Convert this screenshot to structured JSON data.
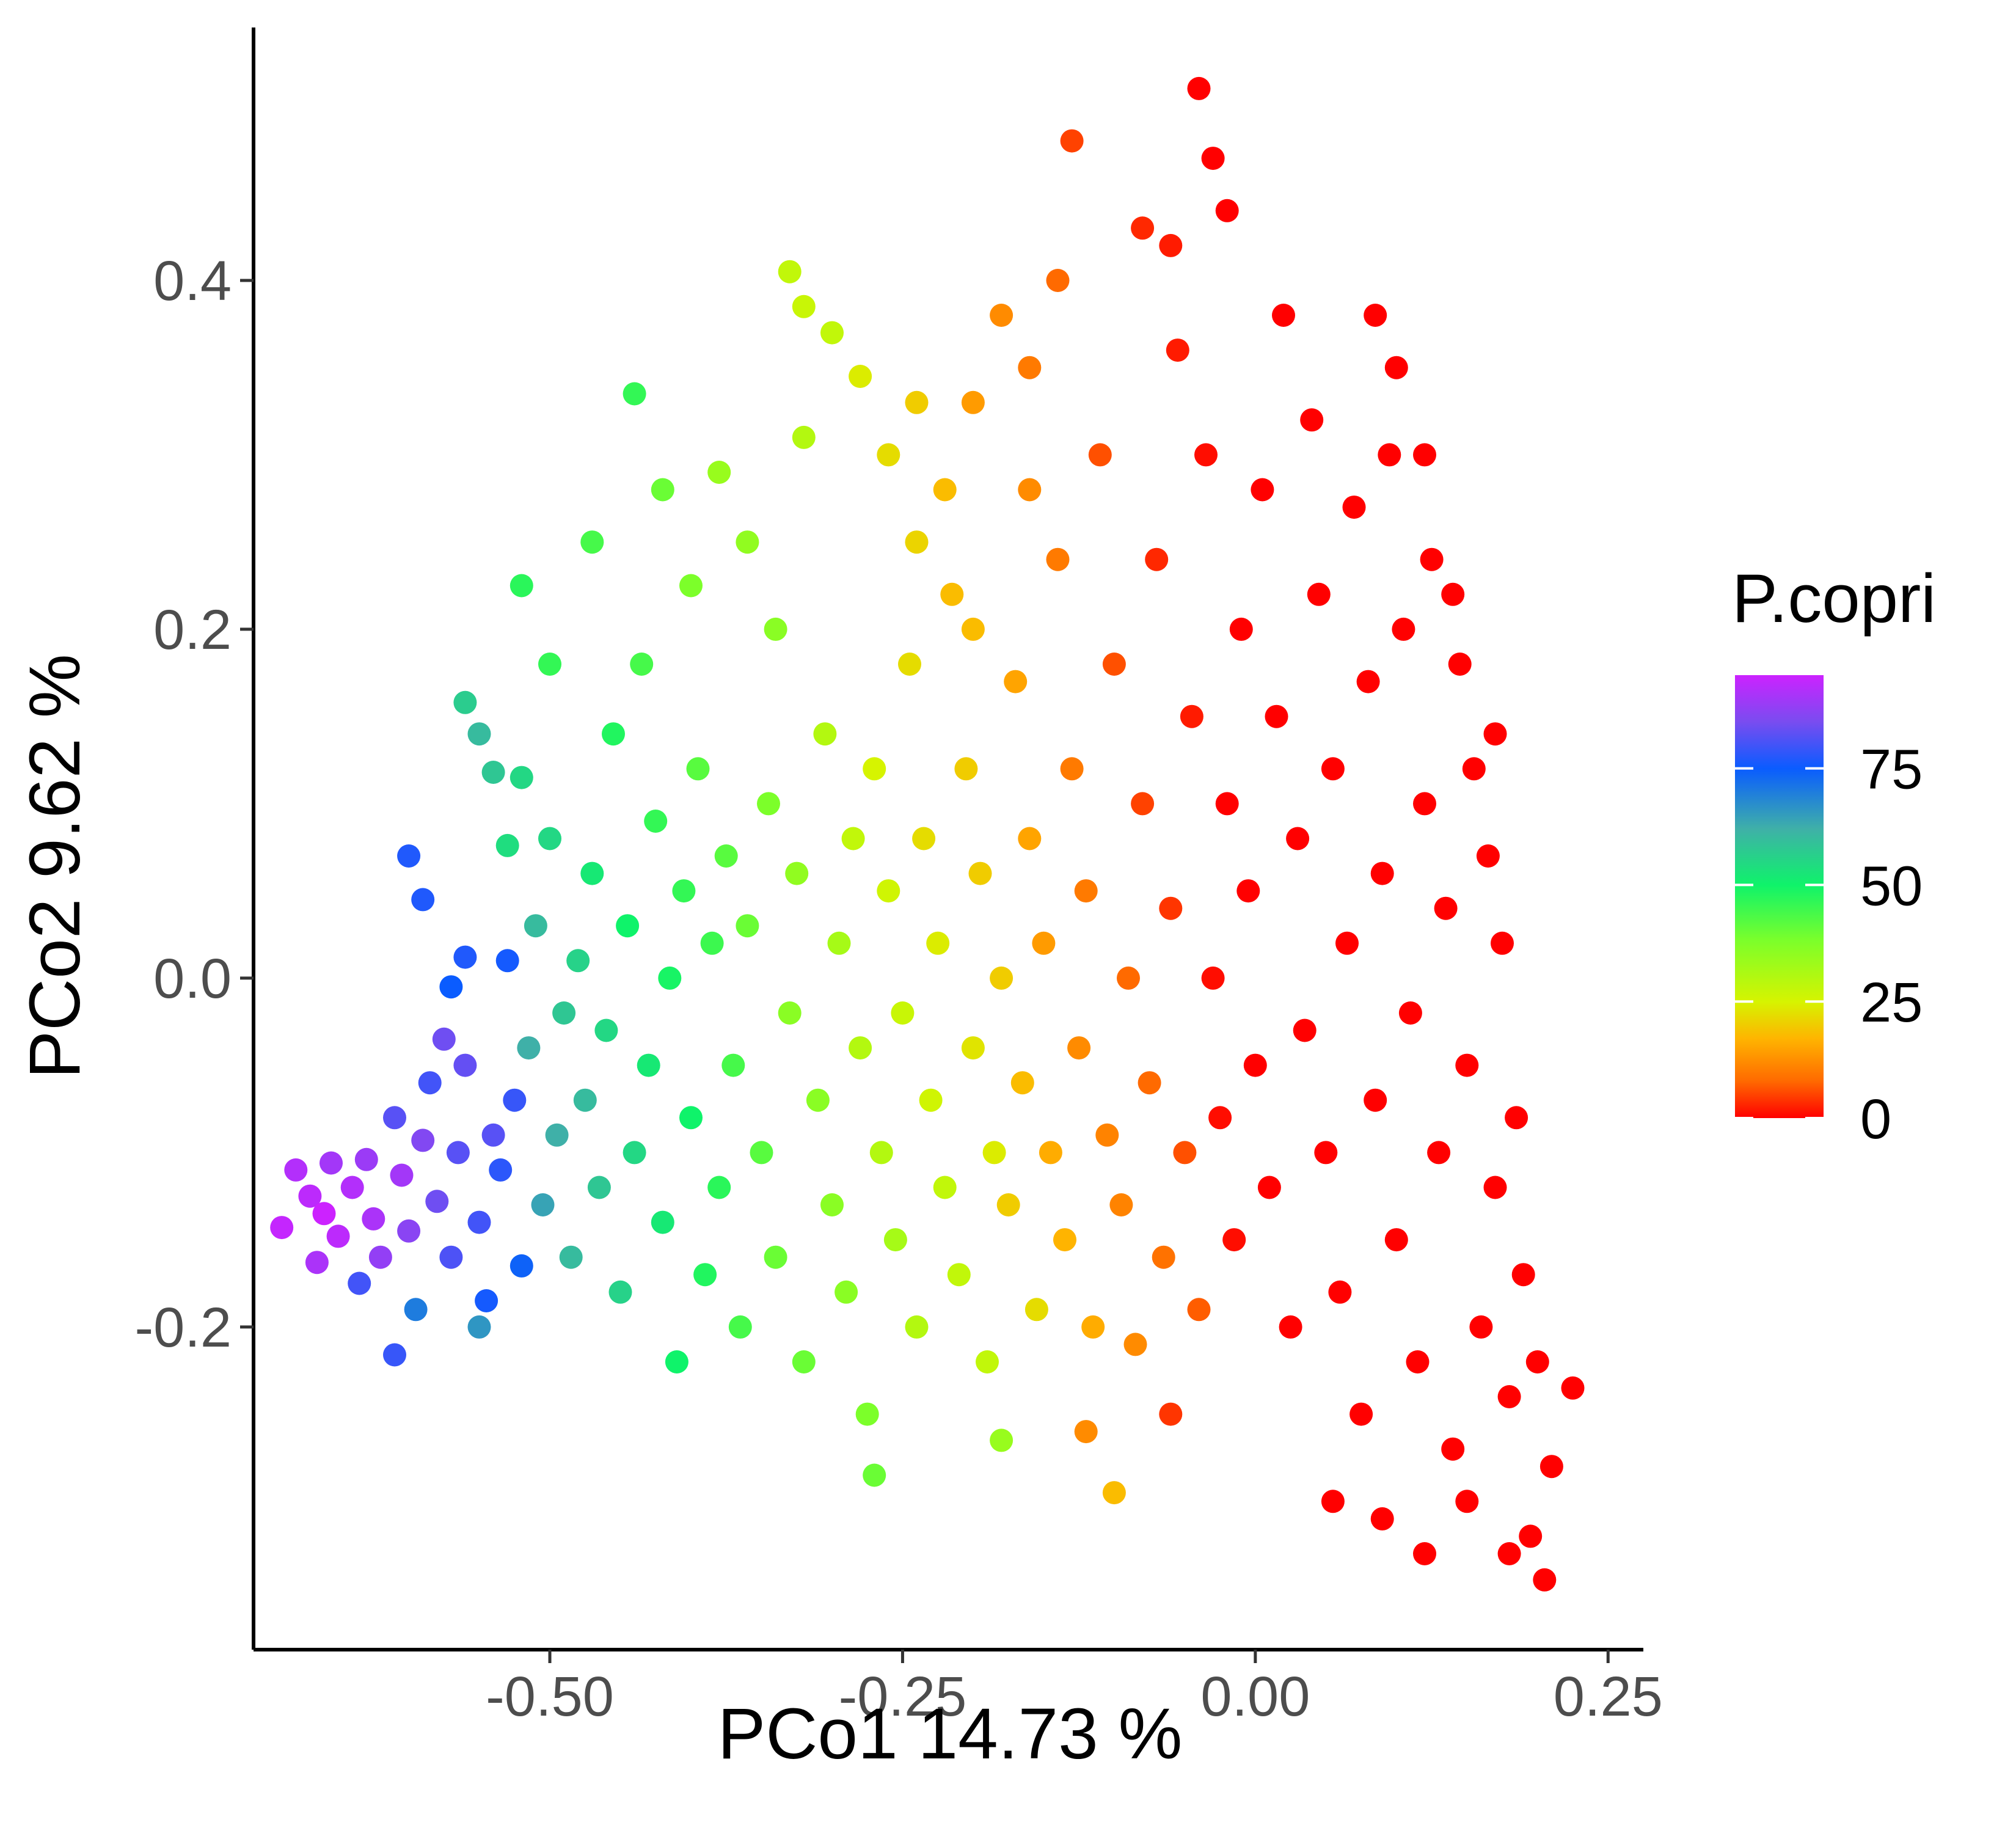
{
  "chart_data": {
    "type": "scatter",
    "title": "",
    "xlabel": "PCo1 14.73 %",
    "ylabel": "PCo2 9.62 %",
    "xlim": [
      -0.71,
      0.275
    ],
    "ylim": [
      -0.385,
      0.545
    ],
    "x_ticks": [
      -0.5,
      -0.25,
      0.0,
      0.25
    ],
    "x_tick_labels": [
      "-0.50",
      "-0.25",
      "0.00",
      "0.25"
    ],
    "y_ticks": [
      -0.2,
      0.0,
      0.2,
      0.4
    ],
    "y_tick_labels": [
      "-0.2",
      "0.0",
      "0.2",
      "0.4"
    ],
    "grid": false,
    "color_variable": "P.copri",
    "legend": {
      "title": "P.copri",
      "type": "continuous colorbar",
      "placement": "right",
      "range": [
        0,
        95
      ],
      "ticks": [
        0,
        25,
        50,
        75
      ],
      "tick_labels": [
        "0",
        "25",
        "50",
        "75"
      ],
      "colors": [
        {
          "value": 0,
          "color": "#ff0000"
        },
        {
          "value": 8,
          "color": "#ff6a00"
        },
        {
          "value": 17,
          "color": "#ffb400"
        },
        {
          "value": 25,
          "color": "#d6f400"
        },
        {
          "value": 38,
          "color": "#7cff2a"
        },
        {
          "value": 50,
          "color": "#0ff36a"
        },
        {
          "value": 62,
          "color": "#3fb0a8"
        },
        {
          "value": 75,
          "color": "#0a5cff"
        },
        {
          "value": 85,
          "color": "#7a4cf0"
        },
        {
          "value": 95,
          "color": "#cc22ff"
        }
      ]
    },
    "series": [
      {
        "points": [
          [
            -0.69,
            -0.143,
            94
          ],
          [
            -0.68,
            -0.11,
            92
          ],
          [
            -0.67,
            -0.125,
            93
          ],
          [
            -0.665,
            -0.163,
            91
          ],
          [
            -0.66,
            -0.135,
            95
          ],
          [
            -0.655,
            -0.106,
            90
          ],
          [
            -0.65,
            -0.148,
            93
          ],
          [
            -0.64,
            -0.12,
            92
          ],
          [
            -0.635,
            -0.175,
            80
          ],
          [
            -0.63,
            -0.104,
            89
          ],
          [
            -0.625,
            -0.138,
            91
          ],
          [
            -0.62,
            -0.16,
            88
          ],
          [
            -0.61,
            -0.08,
            82
          ],
          [
            -0.605,
            -0.113,
            90
          ],
          [
            -0.6,
            -0.145,
            87
          ],
          [
            -0.595,
            -0.19,
            70
          ],
          [
            -0.59,
            -0.093,
            86
          ],
          [
            -0.585,
            -0.06,
            80
          ],
          [
            -0.58,
            -0.128,
            84
          ],
          [
            -0.575,
            -0.035,
            84
          ],
          [
            -0.57,
            -0.16,
            81
          ],
          [
            -0.565,
            -0.1,
            82
          ],
          [
            -0.56,
            -0.05,
            83
          ],
          [
            -0.55,
            -0.14,
            80
          ],
          [
            -0.545,
            -0.185,
            76
          ],
          [
            -0.54,
            -0.09,
            82
          ],
          [
            -0.535,
            -0.11,
            78
          ],
          [
            -0.53,
            0.01,
            76
          ],
          [
            -0.525,
            -0.07,
            79
          ],
          [
            -0.52,
            -0.165,
            74
          ],
          [
            -0.61,
            -0.216,
            79
          ],
          [
            -0.6,
            0.07,
            77
          ],
          [
            -0.59,
            0.045,
            77
          ],
          [
            -0.57,
            -0.005,
            75
          ],
          [
            -0.56,
            0.012,
            77
          ],
          [
            -0.56,
            0.158,
            57
          ],
          [
            -0.55,
            0.14,
            60
          ],
          [
            -0.54,
            0.118,
            58
          ],
          [
            -0.53,
            0.076,
            54
          ],
          [
            -0.52,
            0.115,
            55
          ],
          [
            -0.55,
            -0.2,
            66
          ],
          [
            -0.515,
            -0.04,
            62
          ],
          [
            -0.51,
            0.03,
            60
          ],
          [
            -0.505,
            -0.13,
            64
          ],
          [
            -0.5,
            0.08,
            55
          ],
          [
            -0.495,
            -0.09,
            62
          ],
          [
            -0.49,
            -0.02,
            58
          ],
          [
            -0.485,
            -0.16,
            60
          ],
          [
            -0.48,
            0.01,
            56
          ],
          [
            -0.475,
            -0.07,
            60
          ],
          [
            -0.47,
            0.06,
            52
          ],
          [
            -0.465,
            -0.12,
            58
          ],
          [
            -0.46,
            -0.03,
            55
          ],
          [
            -0.455,
            0.14,
            48
          ],
          [
            -0.45,
            -0.18,
            56
          ],
          [
            -0.445,
            0.03,
            50
          ],
          [
            -0.44,
            -0.1,
            55
          ],
          [
            -0.435,
            0.18,
            44
          ],
          [
            -0.43,
            -0.05,
            52
          ],
          [
            -0.425,
            0.09,
            46
          ],
          [
            -0.42,
            -0.14,
            52
          ],
          [
            -0.415,
            0.0,
            49
          ],
          [
            -0.41,
            -0.22,
            50
          ],
          [
            -0.405,
            0.05,
            46
          ],
          [
            -0.4,
            -0.08,
            50
          ],
          [
            -0.395,
            0.12,
            42
          ],
          [
            -0.39,
            -0.17,
            48
          ],
          [
            -0.385,
            0.02,
            45
          ],
          [
            -0.38,
            -0.12,
            47
          ],
          [
            -0.375,
            0.07,
            42
          ],
          [
            -0.52,
            0.225,
            47
          ],
          [
            -0.5,
            0.18,
            46
          ],
          [
            -0.47,
            0.25,
            44
          ],
          [
            -0.44,
            0.335,
            46
          ],
          [
            -0.42,
            0.28,
            40
          ],
          [
            -0.4,
            0.225,
            38
          ],
          [
            -0.38,
            0.29,
            34
          ],
          [
            -0.36,
            0.25,
            35
          ],
          [
            -0.34,
            0.2,
            36
          ],
          [
            -0.32,
            0.31,
            30
          ],
          [
            -0.37,
            -0.05,
            44
          ],
          [
            -0.365,
            -0.2,
            44
          ],
          [
            -0.36,
            0.03,
            40
          ],
          [
            -0.35,
            -0.1,
            42
          ],
          [
            -0.345,
            0.1,
            38
          ],
          [
            -0.34,
            -0.16,
            40
          ],
          [
            -0.33,
            -0.02,
            36
          ],
          [
            -0.325,
            0.06,
            35
          ],
          [
            -0.32,
            -0.22,
            40
          ],
          [
            -0.31,
            -0.07,
            36
          ],
          [
            -0.305,
            0.14,
            30
          ],
          [
            -0.3,
            -0.13,
            36
          ],
          [
            -0.295,
            0.02,
            32
          ],
          [
            -0.29,
            -0.18,
            36
          ],
          [
            -0.285,
            0.08,
            28
          ],
          [
            -0.28,
            -0.04,
            30
          ],
          [
            -0.275,
            -0.25,
            38
          ],
          [
            -0.27,
            0.12,
            25
          ],
          [
            -0.265,
            -0.1,
            30
          ],
          [
            -0.26,
            0.05,
            26
          ],
          [
            -0.255,
            -0.15,
            32
          ],
          [
            -0.25,
            -0.02,
            27
          ],
          [
            -0.245,
            0.18,
            22
          ],
          [
            -0.24,
            -0.2,
            30
          ],
          [
            -0.235,
            0.08,
            22
          ],
          [
            -0.23,
            -0.07,
            26
          ],
          [
            -0.225,
            0.02,
            24
          ],
          [
            -0.22,
            -0.12,
            28
          ],
          [
            -0.215,
            0.22,
            18
          ],
          [
            -0.21,
            -0.17,
            28
          ],
          [
            -0.205,
            0.12,
            20
          ],
          [
            -0.2,
            -0.04,
            23
          ],
          [
            -0.195,
            0.06,
            20
          ],
          [
            -0.19,
            -0.22,
            28
          ],
          [
            -0.185,
            -0.1,
            24
          ],
          [
            -0.3,
            0.37,
            28
          ],
          [
            -0.28,
            0.345,
            24
          ],
          [
            -0.26,
            0.3,
            22
          ],
          [
            -0.24,
            0.33,
            20
          ],
          [
            -0.22,
            0.28,
            18
          ],
          [
            -0.2,
            0.33,
            14
          ],
          [
            -0.18,
            0.38,
            12
          ],
          [
            -0.16,
            0.35,
            10
          ],
          [
            -0.14,
            0.4,
            8
          ],
          [
            -0.13,
            0.48,
            5
          ],
          [
            -0.33,
            0.405,
            28
          ],
          [
            -0.32,
            0.385,
            27
          ],
          [
            -0.27,
            -0.285,
            40
          ],
          [
            -0.18,
            -0.265,
            34
          ],
          [
            -0.1,
            -0.295,
            18
          ],
          [
            -0.18,
            0.0,
            20
          ],
          [
            -0.175,
            -0.13,
            20
          ],
          [
            -0.17,
            0.17,
            15
          ],
          [
            -0.165,
            -0.06,
            18
          ],
          [
            -0.16,
            0.08,
            15
          ],
          [
            -0.155,
            -0.19,
            22
          ],
          [
            -0.15,
            0.02,
            14
          ],
          [
            -0.145,
            -0.1,
            16
          ],
          [
            -0.14,
            0.24,
            10
          ],
          [
            -0.135,
            -0.15,
            17
          ],
          [
            -0.13,
            0.12,
            10
          ],
          [
            -0.125,
            -0.04,
            12
          ],
          [
            -0.12,
            0.05,
            10
          ],
          [
            -0.115,
            -0.2,
            16
          ],
          [
            -0.11,
            0.3,
            6
          ],
          [
            -0.105,
            -0.09,
            11
          ],
          [
            -0.1,
            0.18,
            6
          ],
          [
            -0.095,
            -0.13,
            11
          ],
          [
            -0.09,
            0.0,
            8
          ],
          [
            -0.085,
            -0.21,
            12
          ],
          [
            -0.08,
            0.1,
            5
          ],
          [
            -0.075,
            -0.06,
            8
          ],
          [
            -0.07,
            0.24,
            3
          ],
          [
            -0.065,
            -0.16,
            9
          ],
          [
            -0.06,
            0.04,
            4
          ],
          [
            -0.055,
            0.36,
            2
          ],
          [
            -0.05,
            -0.1,
            6
          ],
          [
            -0.045,
            0.15,
            2
          ],
          [
            -0.04,
            -0.19,
            7
          ],
          [
            -0.035,
            0.3,
            1
          ],
          [
            -0.08,
            0.43,
            3
          ],
          [
            -0.06,
            0.42,
            2
          ],
          [
            -0.04,
            0.51,
            0
          ],
          [
            -0.03,
            0.47,
            0
          ],
          [
            -0.02,
            0.44,
            0
          ],
          [
            -0.03,
            0.0,
            1
          ],
          [
            -0.025,
            -0.08,
            1
          ],
          [
            -0.02,
            0.1,
            0
          ],
          [
            -0.015,
            -0.15,
            1
          ],
          [
            -0.01,
            0.2,
            0
          ],
          [
            -0.005,
            0.05,
            0
          ],
          [
            0.0,
            -0.05,
            0
          ],
          [
            0.005,
            0.28,
            0
          ],
          [
            0.01,
            -0.12,
            0
          ],
          [
            0.015,
            0.15,
            0
          ],
          [
            0.02,
            0.38,
            0
          ],
          [
            0.025,
            -0.2,
            0
          ],
          [
            0.03,
            0.08,
            0
          ],
          [
            0.035,
            -0.03,
            0
          ],
          [
            0.04,
            0.32,
            0
          ],
          [
            0.045,
            0.22,
            0
          ],
          [
            0.05,
            -0.1,
            0
          ],
          [
            0.055,
            0.12,
            0
          ],
          [
            0.06,
            -0.18,
            0
          ],
          [
            0.065,
            0.02,
            0
          ],
          [
            0.07,
            0.27,
            0
          ],
          [
            0.075,
            -0.25,
            0
          ],
          [
            0.08,
            0.17,
            0
          ],
          [
            0.085,
            -0.07,
            0
          ],
          [
            0.09,
            0.06,
            0
          ],
          [
            0.095,
            0.3,
            0
          ],
          [
            0.1,
            -0.15,
            0
          ],
          [
            0.105,
            0.2,
            0
          ],
          [
            0.11,
            -0.02,
            0
          ],
          [
            0.115,
            -0.22,
            0
          ],
          [
            0.12,
            0.1,
            0
          ],
          [
            0.125,
            0.24,
            0
          ],
          [
            0.13,
            -0.1,
            0
          ],
          [
            0.135,
            0.04,
            0
          ],
          [
            0.14,
            -0.27,
            0
          ],
          [
            0.145,
            0.18,
            0
          ],
          [
            0.15,
            -0.05,
            0
          ],
          [
            0.155,
            0.12,
            0
          ],
          [
            0.16,
            -0.2,
            0
          ],
          [
            0.165,
            0.07,
            0
          ],
          [
            0.17,
            -0.12,
            0
          ],
          [
            0.175,
            0.02,
            0
          ],
          [
            0.18,
            -0.24,
            0
          ],
          [
            0.185,
            -0.08,
            0
          ],
          [
            0.19,
            -0.17,
            0
          ],
          [
            0.195,
            -0.32,
            0
          ],
          [
            0.2,
            -0.22,
            0
          ],
          [
            0.21,
            -0.28,
            0
          ],
          [
            0.225,
            -0.235,
            0
          ],
          [
            0.205,
            -0.345,
            0
          ],
          [
            0.17,
            0.14,
            0
          ],
          [
            0.14,
            0.22,
            0
          ],
          [
            0.12,
            0.3,
            0
          ],
          [
            0.1,
            0.35,
            0
          ],
          [
            0.085,
            0.38,
            0
          ],
          [
            0.055,
            -0.3,
            0
          ],
          [
            0.09,
            -0.31,
            0
          ],
          [
            0.12,
            -0.33,
            0
          ],
          [
            0.15,
            -0.3,
            0
          ],
          [
            0.18,
            -0.33,
            0
          ],
          [
            -0.06,
            -0.25,
            4
          ],
          [
            -0.12,
            -0.26,
            12
          ],
          [
            -0.16,
            0.28,
            12
          ],
          [
            -0.2,
            0.2,
            18
          ],
          [
            -0.24,
            0.25,
            21
          ]
        ]
      }
    ]
  }
}
